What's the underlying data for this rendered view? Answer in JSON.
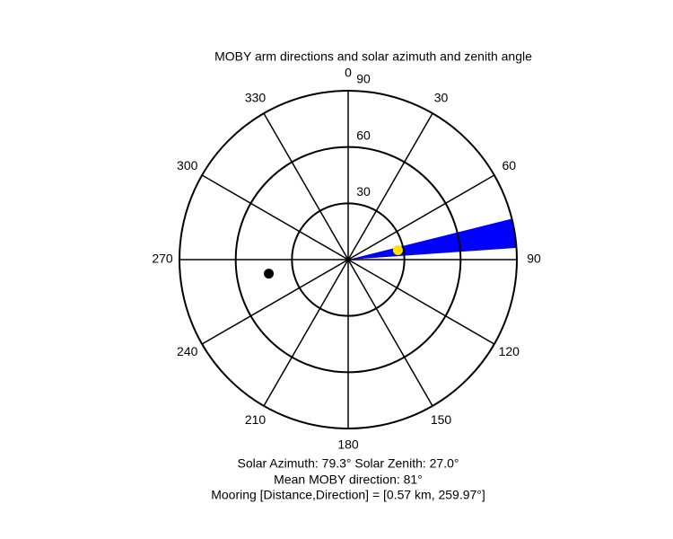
{
  "chart_data": {
    "type": "polar",
    "title": "MOBY arm directions and solar azimuth and zenith angle",
    "rlim": [
      0,
      90
    ],
    "rticks": [
      30,
      60,
      90
    ],
    "thetaticks": [
      0,
      30,
      60,
      90,
      120,
      150,
      180,
      210,
      240,
      270,
      300,
      330
    ],
    "arm_directions": [
      76,
      86
    ],
    "arm_color": "#0000ff",
    "points": [
      {
        "theta": 79.3,
        "r": 27.0,
        "color": "#ffe000"
      },
      {
        "theta": 259.97,
        "r": 43,
        "color": "#000000"
      }
    ],
    "annotations": [
      "Solar Azimuth: 79.3°   Solar Zenith: 27.0°",
      "Mean MOBY direction: 81°",
      "Mooring [Distance,Direction] = [0.57 km, 259.97°]"
    ]
  }
}
